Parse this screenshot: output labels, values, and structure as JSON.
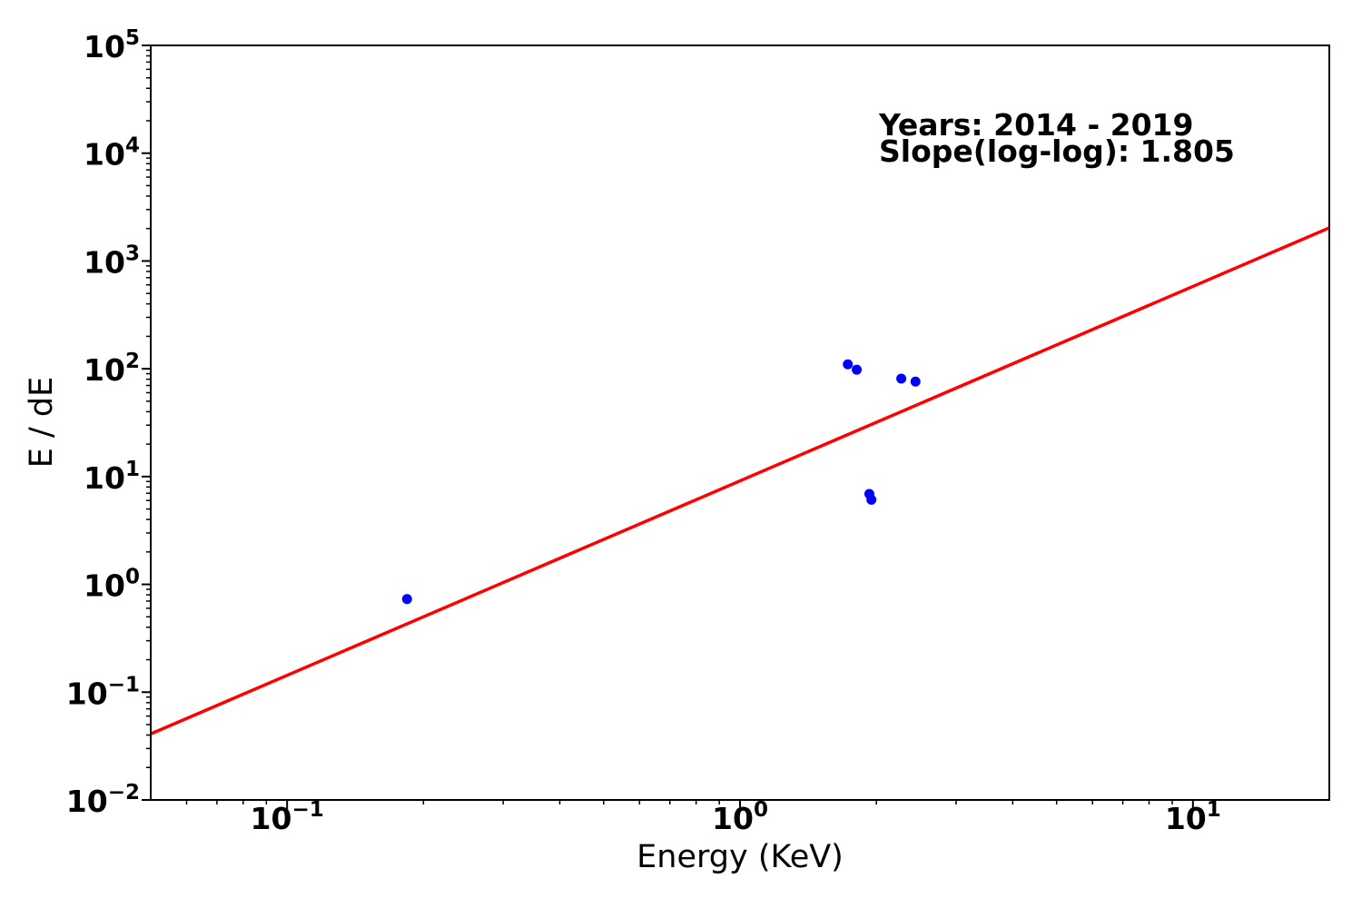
{
  "chart_data": {
    "type": "scatter",
    "title": "",
    "xlabel": "Energy (KeV)",
    "ylabel": "E / dE",
    "x_scale": "log",
    "y_scale": "log",
    "xlim": [
      0.05,
      20
    ],
    "ylim": [
      0.01,
      100000
    ],
    "grid": false,
    "axis_color": "#000000",
    "tick_label_base": "10",
    "x_tick_exponents": [
      -1,
      0,
      1
    ],
    "y_tick_exponents": [
      -2,
      -1,
      0,
      1,
      2,
      3,
      4,
      5
    ],
    "series": [
      {
        "name": "fit-line",
        "type": "line",
        "color": "#ff0000",
        "slope_loglog": 1.805,
        "points": [
          [
            0.05,
            0.041
          ],
          [
            20,
            2030
          ]
        ]
      },
      {
        "name": "data-points",
        "type": "scatter",
        "color": "#0000ff",
        "marker": "circle",
        "points": [
          [
            0.184,
            0.73
          ],
          [
            1.73,
            110
          ],
          [
            1.81,
            98
          ],
          [
            1.93,
            6.9
          ],
          [
            1.95,
            6.1
          ],
          [
            2.27,
            81
          ],
          [
            2.44,
            76
          ]
        ]
      }
    ],
    "annotations": [
      {
        "text": "Years: 2014 - 2019"
      },
      {
        "text": "Slope(log-log): 1.805"
      }
    ],
    "annotation_color": "#000000"
  }
}
